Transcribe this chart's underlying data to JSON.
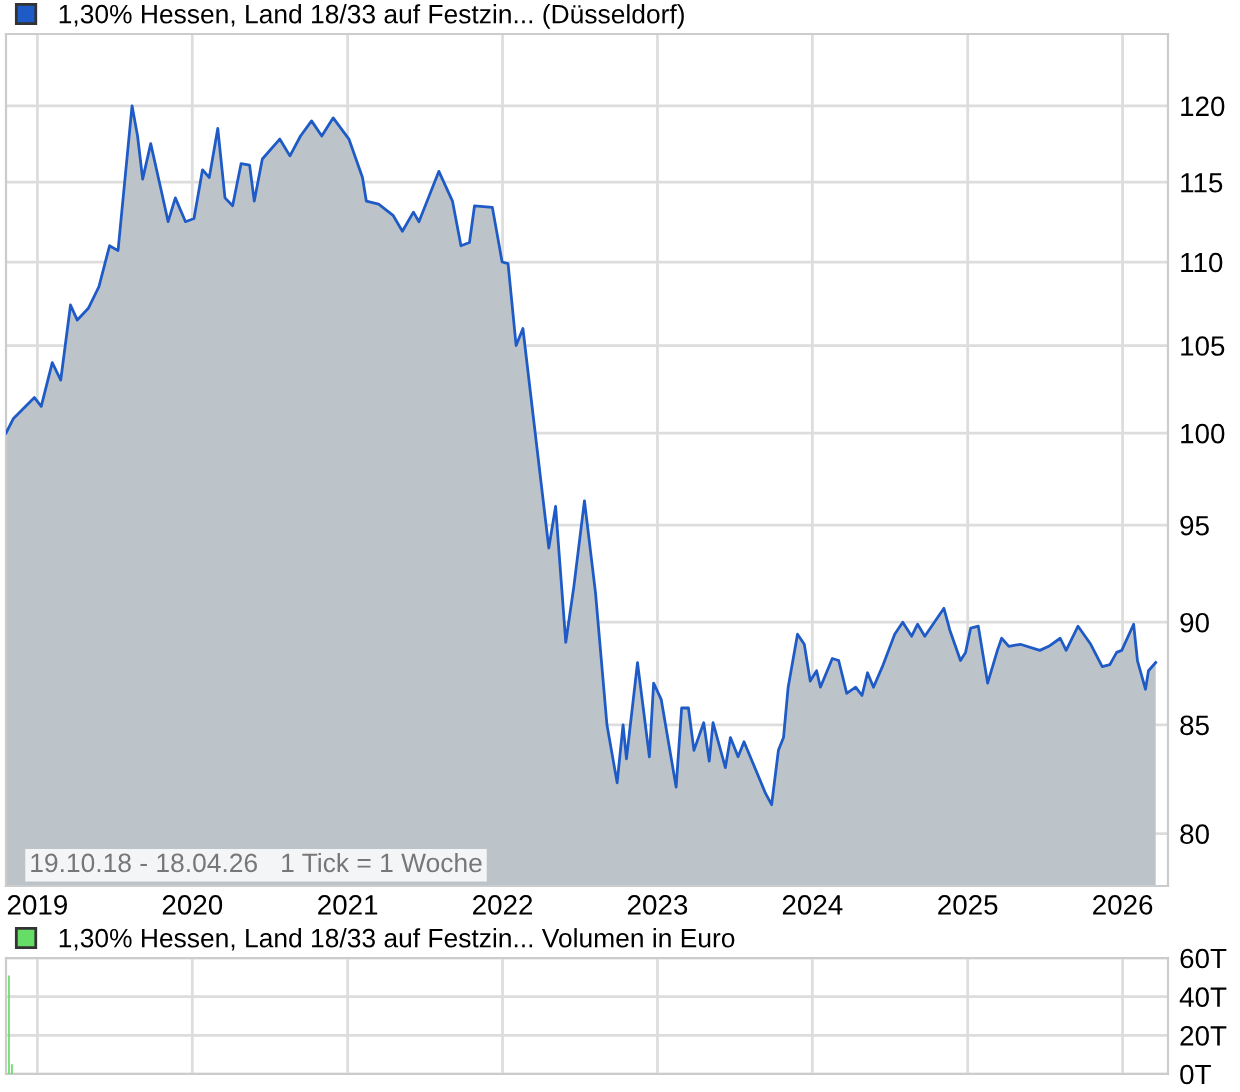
{
  "chart_data": [
    {
      "type": "area",
      "log": "y",
      "legend": "top left",
      "grid": true,
      "tick_labels": "xy",
      "x": [
        "2018-10-19",
        "2018-11-05",
        "2018-12-25",
        "2019-01-10",
        "2019-02-05",
        "2019-02-25",
        "2019-03-20",
        "2019-04-05",
        "2019-05-01",
        "2019-05-26",
        "2019-06-20",
        "2019-07-10",
        "2019-08-12",
        "2019-08-25",
        "2019-09-06",
        "2019-09-25",
        "2019-10-22",
        "2019-11-05",
        "2019-11-22",
        "2019-12-16",
        "2020-01-05",
        "2020-01-25",
        "2020-02-10",
        "2020-03-01",
        "2020-03-18",
        "2020-04-05",
        "2020-04-25",
        "2020-05-15",
        "2020-05-26",
        "2020-06-14",
        "2020-07-25",
        "2020-08-18",
        "2020-09-12",
        "2020-10-08",
        "2020-11-01",
        "2020-11-28",
        "2021-01-04",
        "2021-02-05",
        "2021-02-14",
        "2021-03-15",
        "2021-04-18",
        "2021-05-10",
        "2021-06-05",
        "2021-06-18",
        "2021-08-04",
        "2021-09-05",
        "2021-09-25",
        "2021-10-15",
        "2021-10-27",
        "2021-12-08",
        "2021-12-31",
        "2022-01-14",
        "2022-02-02",
        "2022-02-18",
        "2022-03-14",
        "2022-04-20",
        "2022-05-06",
        "2022-05-30",
        "2022-06-18",
        "2022-07-13",
        "2022-08-08",
        "2022-09-04",
        "2022-09-28",
        "2022-10-12",
        "2022-10-20",
        "2022-11-15",
        "2022-12-13",
        "2022-12-23",
        "2023-01-10",
        "2023-02-14",
        "2023-02-27",
        "2023-03-15",
        "2023-03-28",
        "2023-04-20",
        "2023-05-03",
        "2023-05-12",
        "2023-06-10",
        "2023-06-22",
        "2023-07-10",
        "2023-07-24",
        "2023-09-13",
        "2023-09-27",
        "2023-10-13",
        "2023-10-25",
        "2023-11-05",
        "2023-11-27",
        "2023-12-13",
        "2023-12-27",
        "2024-01-11",
        "2024-01-20",
        "2024-02-17",
        "2024-03-03",
        "2024-03-22",
        "2024-04-12",
        "2024-04-27",
        "2024-05-10",
        "2024-05-24",
        "2024-06-14",
        "2024-07-13",
        "2024-08-01",
        "2024-08-22",
        "2024-09-05",
        "2024-09-22",
        "2024-11-06",
        "2024-11-20",
        "2024-12-15",
        "2024-12-27",
        "2025-01-08",
        "2025-01-26",
        "2025-02-17",
        "2025-03-12",
        "2025-03-22",
        "2025-04-08",
        "2025-05-05",
        "2025-06-20",
        "2025-07-11",
        "2025-08-07",
        "2025-08-21",
        "2025-09-18",
        "2025-10-18",
        "2025-11-14",
        "2025-12-02",
        "2025-12-18",
        "2025-12-30",
        "2026-01-27",
        "2026-02-05",
        "2026-02-24",
        "2026-03-03",
        "2026-03-20"
      ],
      "series": [
        {
          "name": "1,30% Hessen, Land 18/33 auf Festzin... (Düsseldorf)",
          "color": "#1f5bc6",
          "values": [
            100,
            100.8,
            102,
            101.5,
            104,
            103,
            107.4,
            106.5,
            107.2,
            108.5,
            111,
            110.7,
            120,
            118,
            115.2,
            117.5,
            114.2,
            112.5,
            114,
            112.5,
            112.7,
            115.8,
            115.3,
            118.5,
            114,
            113.5,
            116.2,
            116.1,
            113.8,
            116.5,
            117.8,
            116.7,
            118,
            119,
            118,
            119.2,
            117.8,
            115.3,
            113.8,
            113.6,
            112.9,
            111.9,
            113.1,
            112.5,
            115.7,
            113.8,
            111,
            111.2,
            113.5,
            113.4,
            110,
            109.9,
            105,
            106,
            101,
            93.8,
            96,
            89,
            91.8,
            96.3,
            91.5,
            85,
            82.3,
            85,
            83.4,
            88,
            83.5,
            87,
            86.2,
            82.1,
            85.8,
            85.8,
            83.8,
            85.1,
            83.3,
            85.1,
            83,
            84.4,
            83.5,
            84.2,
            81.8,
            81.3,
            83.8,
            84.4,
            86.8,
            89.4,
            88.9,
            87.1,
            87.6,
            86.8,
            88.2,
            88.1,
            86.5,
            86.8,
            86.4,
            87.5,
            86.8,
            87.8,
            89.4,
            90,
            89.3,
            89.9,
            89.3,
            90.7,
            89.6,
            88.1,
            88.5,
            89.7,
            89.8,
            87,
            88.6,
            89.2,
            88.8,
            88.9,
            88.6,
            88.8,
            89.2,
            88.6,
            89.8,
            88.9,
            87.8,
            87.9,
            88.5,
            88.6,
            89.9,
            88.1,
            86.7,
            87.6,
            88
          ]
        }
      ],
      "xlim": [
        "2018-10-19",
        "2026-04-18"
      ],
      "xticks": [
        {
          "value": "2019-01-01",
          "label": "2019"
        },
        {
          "value": "2020-01-01",
          "label": "2020"
        },
        {
          "value": "2021-01-01",
          "label": "2021"
        },
        {
          "value": "2022-01-01",
          "label": "2022"
        },
        {
          "value": "2023-01-01",
          "label": "2023"
        },
        {
          "value": "2024-01-01",
          "label": "2024"
        },
        {
          "value": "2025-01-01",
          "label": "2025"
        },
        {
          "value": "2026-01-01",
          "label": "2026"
        }
      ],
      "ylim": [
        77.7,
        124.9
      ],
      "yticks": [
        80,
        85,
        90,
        95,
        100,
        105,
        110,
        115,
        120
      ],
      "annotations": [
        "19.10.18 - 18.04.26   1 Tick = 1 Woche"
      ]
    },
    {
      "type": "bar",
      "legend": "top left",
      "grid": true,
      "tick_labels": "y",
      "x": [
        "2018-10-26",
        "2018-11-02"
      ],
      "series": [
        {
          "name": "1,30% Hessen, Land 18/33 auf Festzin... Volumen in Euro",
          "color": "#66dd66",
          "values": [
            51,
            5
          ]
        }
      ],
      "xlim": [
        "2018-10-19",
        "2026-04-18"
      ],
      "xticks": [
        {
          "value": "2019-01-01",
          "label": null
        },
        {
          "value": "2020-01-01",
          "label": null
        },
        {
          "value": "2021-01-01",
          "label": null
        },
        {
          "value": "2022-01-01",
          "label": null
        },
        {
          "value": "2023-01-01",
          "label": null
        },
        {
          "value": "2024-01-01",
          "label": null
        },
        {
          "value": "2025-01-01",
          "label": null
        },
        {
          "value": "2026-01-01",
          "label": null
        }
      ],
      "ylim": [
        0,
        60
      ],
      "yticks": [
        {
          "value": 0,
          "label": "0T"
        },
        {
          "value": 20,
          "label": "20T"
        },
        {
          "value": 40,
          "label": "40T"
        },
        {
          "value": 60,
          "label": "60T"
        }
      ]
    }
  ]
}
